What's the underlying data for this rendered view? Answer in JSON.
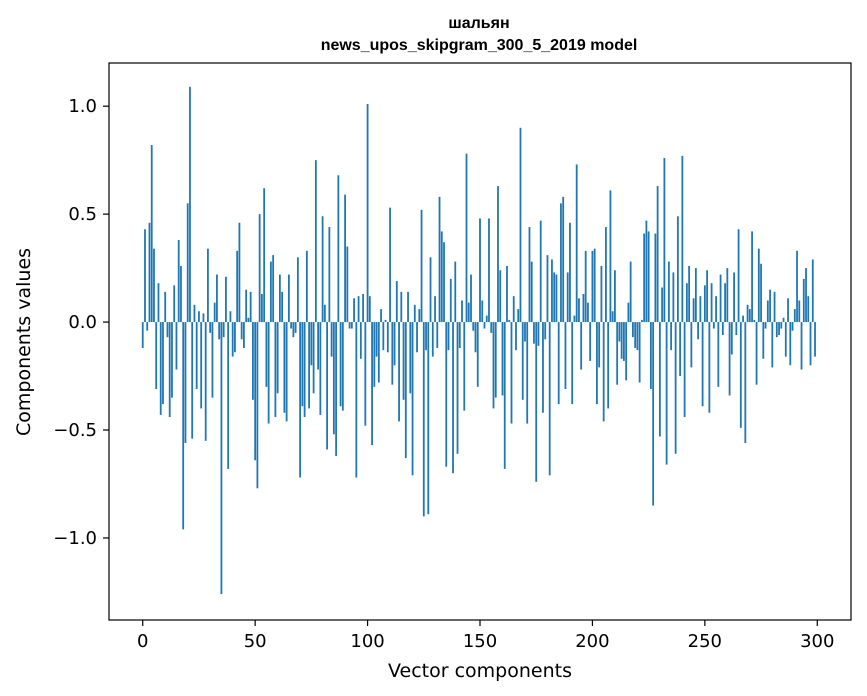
{
  "chart_data": {
    "type": "bar",
    "title": "шальян",
    "subtitle": "news_upos_skipgram_300_5_2019 model",
    "xlabel": "Vector components",
    "ylabel": "Components values",
    "xlim": [
      -15,
      315
    ],
    "ylim": [
      -1.38,
      1.2
    ],
    "xticks": [
      0,
      50,
      100,
      150,
      200,
      250,
      300
    ],
    "yticks": [
      1.0,
      0.5,
      0.0,
      -0.5,
      -1.0
    ],
    "ytick_labels": [
      "1.0",
      "0.5",
      "0.0",
      "−0.5",
      "−1.0"
    ],
    "bar_color": "#1f77b4",
    "grid": false,
    "legend": "none",
    "x": [
      0,
      1,
      2,
      3,
      4,
      5,
      6,
      7,
      8,
      9,
      10,
      11,
      12,
      13,
      14,
      15,
      16,
      17,
      18,
      19,
      20,
      21,
      22,
      23,
      24,
      25,
      26,
      27,
      28,
      29,
      30,
      31,
      32,
      33,
      34,
      35,
      36,
      37,
      38,
      39,
      40,
      41,
      42,
      43,
      44,
      45,
      46,
      47,
      48,
      49,
      50,
      51,
      52,
      53,
      54,
      55,
      56,
      57,
      58,
      59,
      60,
      61,
      62,
      63,
      64,
      65,
      66,
      67,
      68,
      69,
      70,
      71,
      72,
      73,
      74,
      75,
      76,
      77,
      78,
      79,
      80,
      81,
      82,
      83,
      84,
      85,
      86,
      87,
      88,
      89,
      90,
      91,
      92,
      93,
      94,
      95,
      96,
      97,
      98,
      99,
      100,
      101,
      102,
      103,
      104,
      105,
      106,
      107,
      108,
      109,
      110,
      111,
      112,
      113,
      114,
      115,
      116,
      117,
      118,
      119,
      120,
      121,
      122,
      123,
      124,
      125,
      126,
      127,
      128,
      129,
      130,
      131,
      132,
      133,
      134,
      135,
      136,
      137,
      138,
      139,
      140,
      141,
      142,
      143,
      144,
      145,
      146,
      147,
      148,
      149,
      150,
      151,
      152,
      153,
      154,
      155,
      156,
      157,
      158,
      159,
      160,
      161,
      162,
      163,
      164,
      165,
      166,
      167,
      168,
      169,
      170,
      171,
      172,
      173,
      174,
      175,
      176,
      177,
      178,
      179,
      180,
      181,
      182,
      183,
      184,
      185,
      186,
      187,
      188,
      189,
      190,
      191,
      192,
      193,
      194,
      195,
      196,
      197,
      198,
      199,
      200,
      201,
      202,
      203,
      204,
      205,
      206,
      207,
      208,
      209,
      210,
      211,
      212,
      213,
      214,
      215,
      216,
      217,
      218,
      219,
      220,
      221,
      222,
      223,
      224,
      225,
      226,
      227,
      228,
      229,
      230,
      231,
      232,
      233,
      234,
      235,
      236,
      237,
      238,
      239,
      240,
      241,
      242,
      243,
      244,
      245,
      246,
      247,
      248,
      249,
      250,
      251,
      252,
      253,
      254,
      255,
      256,
      257,
      258,
      259,
      260,
      261,
      262,
      263,
      264,
      265,
      266,
      267,
      268,
      269,
      270,
      271,
      272,
      273,
      274,
      275,
      276,
      277,
      278,
      279,
      280,
      281,
      282,
      283,
      284,
      285,
      286,
      287,
      288,
      289,
      290,
      291,
      292,
      293,
      294,
      295,
      296,
      297,
      298,
      299
    ],
    "values": [
      -0.12,
      0.43,
      -0.04,
      0.46,
      0.82,
      0.34,
      -0.31,
      0.18,
      -0.43,
      -0.38,
      0.14,
      -0.07,
      -0.44,
      -0.35,
      0.17,
      -0.22,
      0.38,
      0.26,
      -0.96,
      -0.56,
      0.55,
      1.09,
      -0.54,
      0.08,
      -0.31,
      0.05,
      -0.4,
      0.04,
      -0.55,
      0.34,
      -0.05,
      -0.35,
      0.09,
      0.22,
      -0.08,
      -1.26,
      -0.07,
      0.21,
      -0.68,
      0.05,
      -0.16,
      -0.14,
      0.33,
      0.46,
      -0.08,
      -0.12,
      0.15,
      0.02,
      0.14,
      -0.36,
      -0.64,
      -0.77,
      0.5,
      0.13,
      0.62,
      -0.3,
      -0.47,
      0.28,
      0.31,
      -0.44,
      -0.33,
      0.22,
      0.14,
      -0.42,
      -0.46,
      0.22,
      -0.03,
      -0.07,
      -0.05,
      0.3,
      -0.72,
      -0.39,
      -0.44,
      0.33,
      -0.4,
      -0.2,
      -0.33,
      0.75,
      -0.22,
      -0.43,
      0.49,
      0.08,
      -0.59,
      0.44,
      -0.16,
      -0.52,
      -0.62,
      0.68,
      -0.39,
      -0.41,
      0.59,
      0.35,
      -0.03,
      -0.03,
      0.11,
      -0.72,
      0.12,
      -0.17,
      0.13,
      -0.48,
      1.01,
      0.12,
      -0.57,
      -0.3,
      -0.16,
      -0.28,
      0.06,
      -0.13,
      0.01,
      -0.14,
      0.53,
      -0.29,
      -0.2,
      0.19,
      -0.46,
      0.14,
      -0.36,
      -0.63,
      0.14,
      -0.33,
      -0.71,
      0.08,
      -0.14,
      0.06,
      0.52,
      -0.9,
      -0.13,
      -0.89,
      0.3,
      -0.16,
      0.12,
      -0.12,
      0.58,
      0.42,
      0.37,
      -0.67,
      -0.13,
      0.2,
      -0.7,
      0.28,
      -0.61,
      -0.12,
      0.1,
      -0.41,
      0.78,
      0.09,
      0.22,
      -0.04,
      -0.14,
      -0.3,
      0.48,
      0.1,
      -0.03,
      0.03,
      0.48,
      -0.05,
      -0.4,
      -0.35,
      0.63,
      0.24,
      -0.34,
      -0.68,
      0.26,
      0.01,
      -0.47,
      0.12,
      -0.13,
      0.06,
      0.9,
      -0.36,
      -0.09,
      -0.47,
      0.44,
      0.28,
      -0.1,
      -0.74,
      -0.11,
      0.47,
      -0.42,
      -0.08,
      0.31,
      -0.71,
      0.29,
      0.23,
      0.22,
      -0.38,
      0.55,
      0.58,
      -0.31,
      0.23,
      0.46,
      -0.38,
      0.03,
      0.73,
      0.11,
      -0.22,
      0.13,
      0.33,
      0.09,
      -0.18,
      0.33,
      0.34,
      -0.38,
      -0.21,
      0.26,
      -0.46,
      0.44,
      -0.4,
      0.61,
      0.05,
      0.24,
      -0.29,
      -0.09,
      -0.17,
      -0.18,
      -0.27,
      0.09,
      0.28,
      -0.07,
      -0.12,
      -0.13,
      -0.28,
      0.01,
      0.41,
      0.47,
      0.42,
      -0.31,
      -0.85,
      0.41,
      0.63,
      -0.53,
      0.16,
      0.76,
      -0.66,
      0.28,
      -0.13,
      0.23,
      -0.61,
      0.49,
      -0.25,
      0.77,
      -0.44,
      0.18,
      0.26,
      -0.21,
      0.11,
      0.25,
      -0.08,
      0.12,
      -0.39,
      0.17,
      0.24,
      -0.42,
      0.18,
      -0.03,
      0.12,
      -0.3,
      0.22,
      -0.06,
      0.18,
      0.25,
      -0.34,
      -0.15,
      0.23,
      -0.06,
      0.43,
      -0.49,
      0.03,
      -0.56,
      0.08,
      0.06,
      0.42,
      0.01,
      -0.29,
      0.34,
      0.27,
      -0.17,
      -0.03,
      0.1,
      0.15,
      -0.21,
      0.14,
      -0.07,
      -0.06,
      -0.03,
      0.02,
      -0.16,
      0.11,
      -0.2,
      -0.04,
      0.06,
      0.33,
      0.1,
      -0.22,
      0.2,
      0.25,
      0.12,
      -0.2,
      0.29,
      -0.16
    ]
  }
}
